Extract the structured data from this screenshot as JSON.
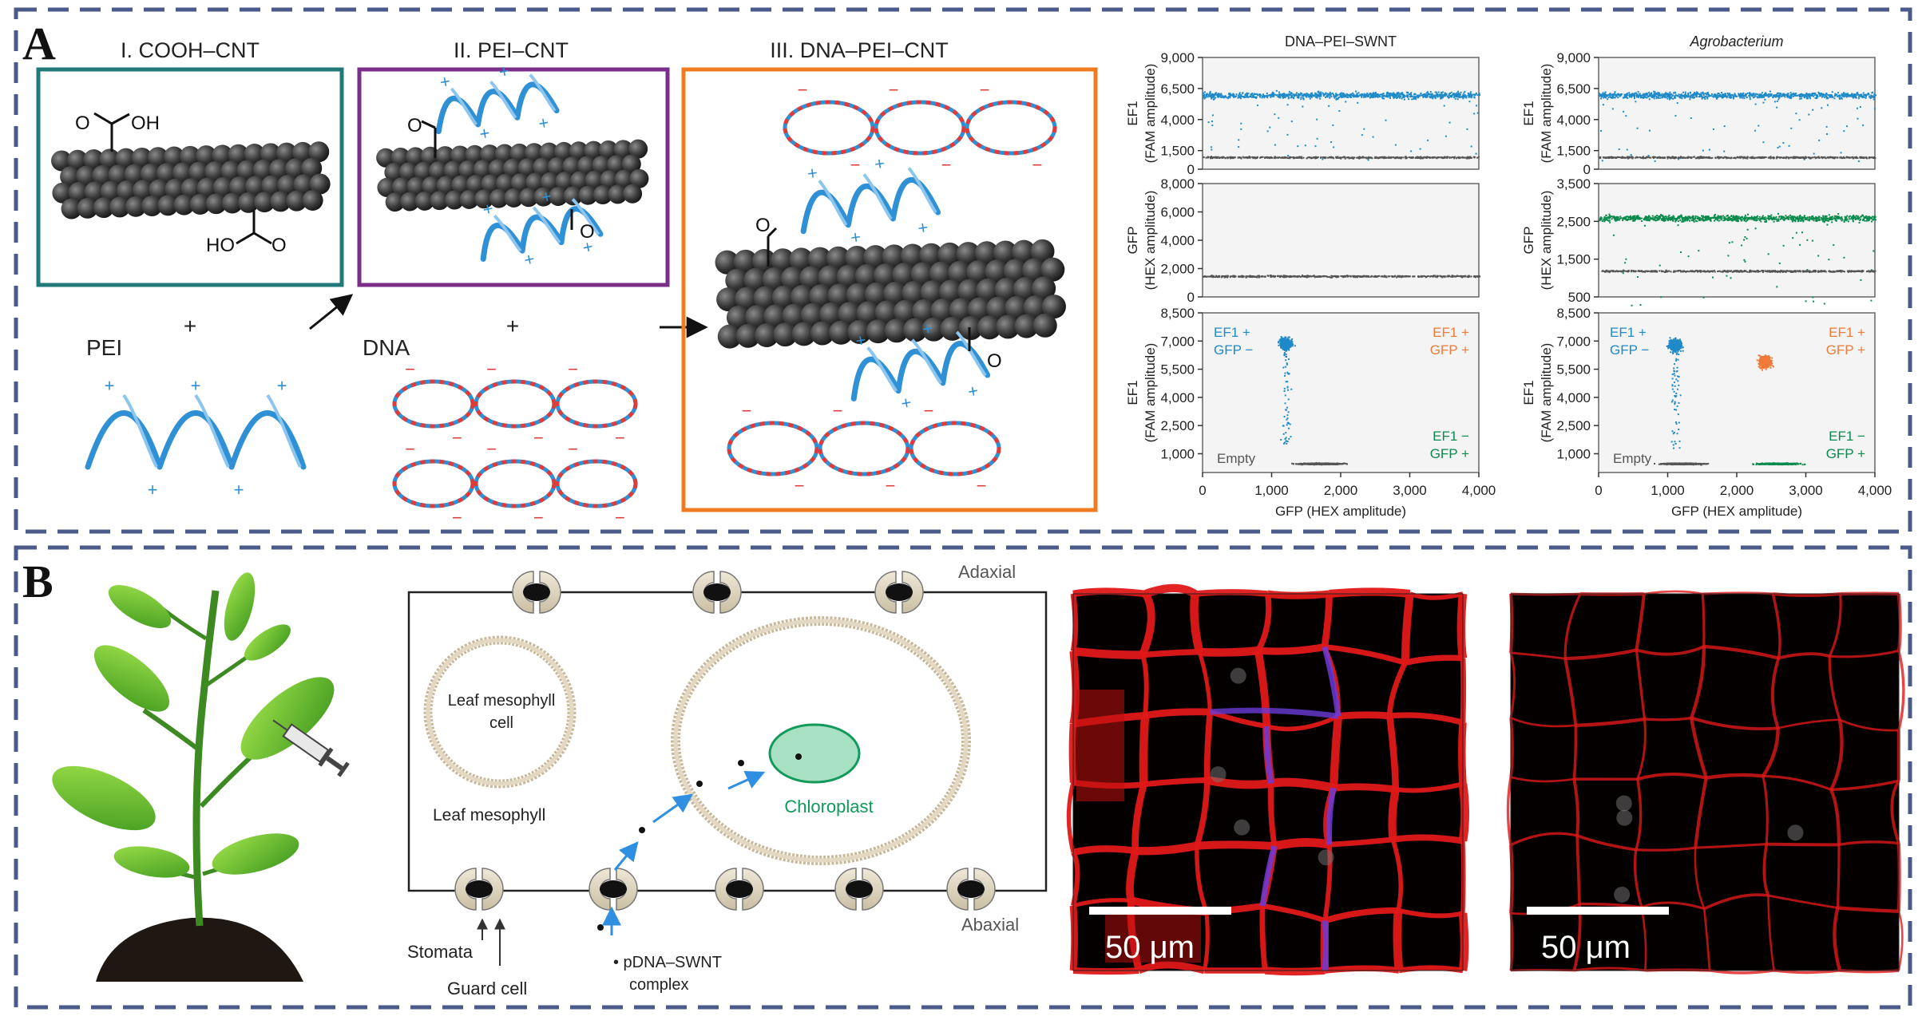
{
  "panelA": {
    "letter": "A",
    "step1": {
      "title": "I. COOH–CNT",
      "oh_top": "OH",
      "o_top": "O",
      "ho_bottom": "HO",
      "o_bottom": "O"
    },
    "step2": {
      "title": "II. PEI–CNT",
      "o_top": "O",
      "o_bottom": "O"
    },
    "step3": {
      "title": "III. DNA–PEI–CNT",
      "o_top": "O",
      "o_bottom": "O"
    },
    "pei_label": "PEI",
    "dna_label": "DNA",
    "plus": "+",
    "minus": "−"
  },
  "panelB": {
    "letter": "B",
    "adaxial": "Adaxial",
    "abaxial": "Abaxial",
    "cell_line1": "Leaf mesophyll",
    "cell_line2": "cell",
    "mesophyll": "Leaf mesophyll",
    "chloroplast": "Chloroplast",
    "stomata": "Stomata",
    "guard_cell": "Guard cell",
    "complex_line1": "• pDNA–SWNT",
    "complex_line2": "complex",
    "scale1": "50 μm",
    "scale2": "50 μm"
  },
  "colors": {
    "blue": "#1f8ac9",
    "green": "#0b8a4d",
    "orange": "#f07a3a",
    "gray": "#555555",
    "frame": "#4a5a8a",
    "teal": "#1f7a78",
    "purple": "#7a2e8a",
    "stepOrange": "#f07c22"
  },
  "chart_data": [
    {
      "type": "scatter",
      "id": "ef1-dna",
      "title": "DNA–PEI–SWNT",
      "ylabel": "EF1 (FAM amplitude)",
      "yticks": [
        "9,000",
        "6,500",
        "4,000",
        "1,500",
        "0"
      ],
      "ylim": [
        0,
        9000
      ],
      "series": [
        {
          "name": "EF1+ droplets",
          "color": "#1f8ac9",
          "y": 6000
        },
        {
          "name": "negative droplets",
          "color": "#555555",
          "y": 1000
        }
      ]
    },
    {
      "type": "scatter",
      "id": "ef1-agro",
      "title": "Agrobacterium",
      "ylabel": "EF1 (FAM amplitude)",
      "yticks": [
        "9,000",
        "6,500",
        "4,000",
        "1,500",
        "0"
      ],
      "ylim": [
        0,
        9000
      ],
      "series": [
        {
          "name": "EF1+ droplets",
          "color": "#1f8ac9",
          "y": 6000
        },
        {
          "name": "negative droplets",
          "color": "#555555",
          "y": 1000
        }
      ]
    },
    {
      "type": "scatter",
      "id": "gfp-dna",
      "ylabel": "GFP (HEX amplitude)",
      "yticks": [
        "8,000",
        "6,000",
        "4,000",
        "2,000",
        "0"
      ],
      "ylim": [
        0,
        8000
      ],
      "series": [
        {
          "name": "negative droplets",
          "color": "#555555",
          "y": 1500
        }
      ]
    },
    {
      "type": "scatter",
      "id": "gfp-agro",
      "ylabel": "GFP (HEX amplitude)",
      "yticks": [
        "3,500",
        "2,500",
        "1,500",
        "500"
      ],
      "ylim": [
        500,
        3500
      ],
      "series": [
        {
          "name": "GFP+ droplets",
          "color": "#0b8a4d",
          "y": 2600
        },
        {
          "name": "negative droplets",
          "color": "#555555",
          "y": 1200
        }
      ]
    },
    {
      "type": "scatter",
      "id": "2d-dna",
      "xlabel": "GFP (HEX amplitude)",
      "ylabel": "EF1 (FAM amplitude)",
      "xticks": [
        "0",
        "1,000",
        "2,000",
        "3,000",
        "4,000"
      ],
      "yticks": [
        "8,500",
        "7,000",
        "5,500",
        "4,000",
        "2,500",
        "1,000"
      ],
      "xlim": [
        0,
        4000
      ],
      "ylim": [
        0,
        8500
      ],
      "quadrants": {
        "ef1p_gfpn": "EF1 +\nGFP −",
        "ef1p_gfpp": "EF1 +\nGFP +",
        "ef1n_gfpp": "EF1 −\nGFP +",
        "empty": "Empty"
      },
      "clusters": [
        {
          "name": "EF1+ GFP−",
          "color": "#1f8ac9",
          "x": 1200,
          "y": 6900
        },
        {
          "name": "Empty",
          "color": "#555555",
          "x": 1700,
          "y": 500
        }
      ]
    },
    {
      "type": "scatter",
      "id": "2d-agro",
      "xlabel": "GFP (HEX amplitude)",
      "ylabel": "EF1 (FAM amplitude)",
      "xticks": [
        "0",
        "1,000",
        "2,000",
        "3,000",
        "4,000"
      ],
      "yticks": [
        "8,500",
        "7,000",
        "5,500",
        "4,000",
        "2,500",
        "1,000"
      ],
      "xlim": [
        0,
        4000
      ],
      "ylim": [
        0,
        8500
      ],
      "quadrants": {
        "ef1p_gfpn": "EF1 +\nGFP −",
        "ef1p_gfpp": "EF1 +\nGFP +",
        "ef1n_gfpp": "EF1 −\nGFP +",
        "empty": "Empty"
      },
      "clusters": [
        {
          "name": "EF1+ GFP−",
          "color": "#1f8ac9",
          "x": 1100,
          "y": 6800
        },
        {
          "name": "EF1+ GFP+",
          "color": "#f07a3a",
          "x": 2400,
          "y": 5900
        },
        {
          "name": "EF1− GFP+",
          "color": "#0b8a4d",
          "x": 2600,
          "y": 500
        },
        {
          "name": "Empty",
          "color": "#555555",
          "x": 1200,
          "y": 500
        }
      ]
    }
  ]
}
